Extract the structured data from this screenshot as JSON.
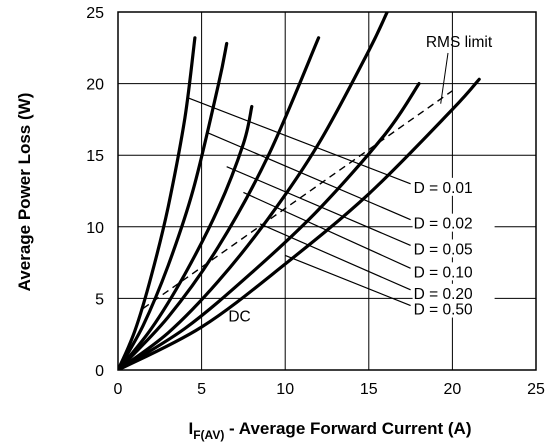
{
  "chart_data": {
    "type": "line",
    "title": "",
    "xlabel": {
      "main": "I",
      "subscript": "F(AV)",
      "rest": " - Average Forward Current (A)"
    },
    "ylabel": "Average Power Loss (W)",
    "xlim": [
      0,
      25
    ],
    "ylim": [
      0,
      25
    ],
    "xticks": [
      "0",
      "5",
      "10",
      "15",
      "20",
      "25"
    ],
    "yticks": [
      "0",
      "5",
      "10",
      "15",
      "20",
      "25"
    ],
    "grid": true,
    "series": [
      {
        "x": [
          0,
          1,
          2,
          3,
          4,
          4.6
        ],
        "y": [
          0,
          2.7,
          6.6,
          11.4,
          17.6,
          23.2
        ]
      },
      {
        "x": [
          0,
          1.5,
          3,
          4.5,
          6,
          6.5
        ],
        "y": [
          0,
          3.1,
          7.3,
          12.6,
          19.9,
          22.8
        ]
      },
      {
        "x": [
          0,
          2,
          4,
          6,
          7.5,
          8
        ],
        "y": [
          0,
          2.9,
          6.7,
          11.3,
          15.8,
          18.4
        ]
      },
      {
        "x": [
          0,
          3,
          6,
          9,
          12
        ],
        "y": [
          0,
          3.7,
          8.6,
          15.0,
          23.2
        ]
      },
      {
        "x": [
          0,
          3,
          6,
          9,
          12,
          15,
          16.1
        ],
        "y": [
          0,
          2.6,
          6.2,
          10.6,
          15.8,
          22.3,
          25.0
        ]
      },
      {
        "x": [
          0,
          4,
          8,
          12,
          16,
          18
        ],
        "y": [
          0,
          2.9,
          6.8,
          11.2,
          16.5,
          20.0
        ]
      },
      {
        "x": [
          0,
          5,
          10,
          15,
          20,
          21.6
        ],
        "y": [
          0,
          3.0,
          7.4,
          12.3,
          18.2,
          20.3
        ]
      }
    ],
    "rms_limit": {
      "label": "RMS limit",
      "x": [
        1.5,
        20
      ],
      "y": [
        4.3,
        19.5
      ]
    },
    "duty_cycle_lines": [
      {
        "label": "D = 0.01",
        "x": [
          4.2,
          17.5
        ],
        "y": [
          19.0,
          13.0
        ]
      },
      {
        "label": "D = 0.02",
        "x": [
          5.3,
          17.5
        ],
        "y": [
          16.6,
          10.5
        ]
      },
      {
        "label": "D = 0.05",
        "x": [
          6.5,
          17.5
        ],
        "y": [
          14.2,
          8.7
        ]
      },
      {
        "label": "D = 0.10",
        "x": [
          7.5,
          17.5
        ],
        "y": [
          12.4,
          7.1
        ]
      },
      {
        "label": "D = 0.20",
        "x": [
          8.5,
          17.5
        ],
        "y": [
          10.2,
          5.6
        ]
      },
      {
        "label": "D = 0.50",
        "x": [
          10,
          17.5
        ],
        "y": [
          8.0,
          4.5
        ]
      }
    ],
    "annotations": [
      {
        "text": "DC",
        "x": 6.6,
        "y": 3.4
      }
    ]
  }
}
